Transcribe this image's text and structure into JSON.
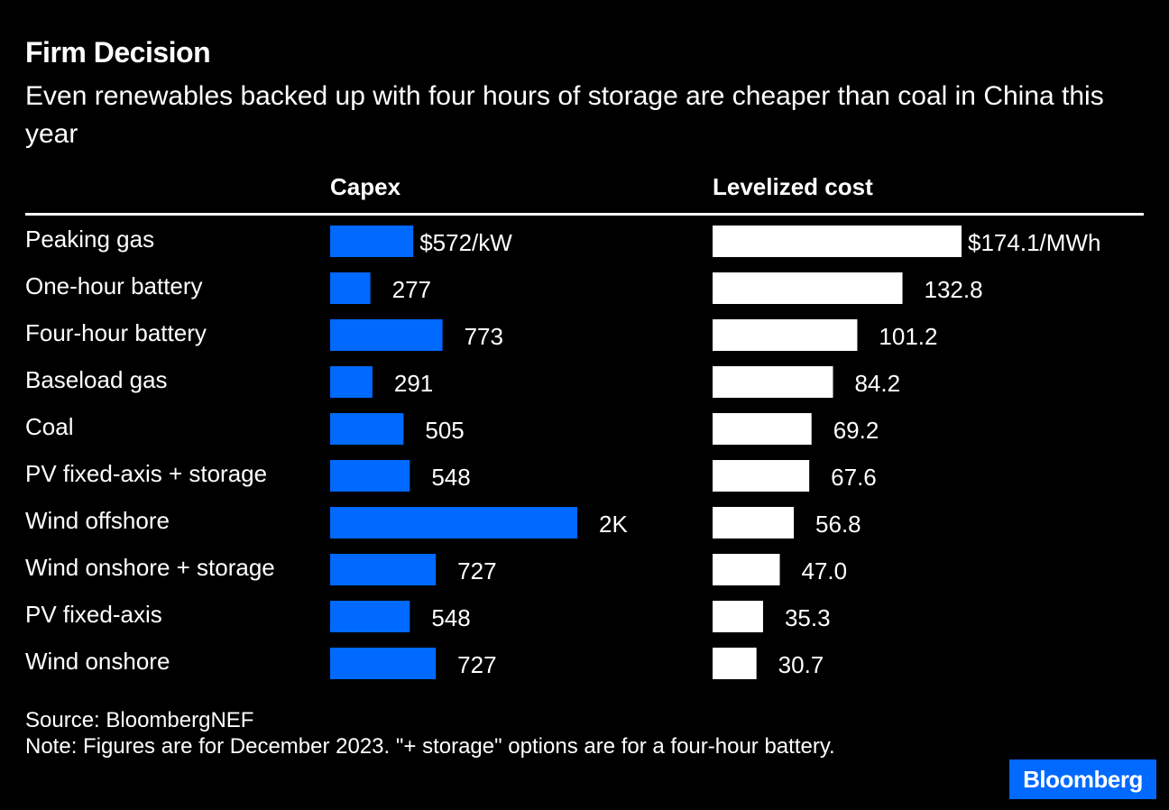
{
  "title": "Firm Decision",
  "subtitle": "Even renewables backed up with four hours of storage are cheaper than coal in China this year",
  "footer": {
    "source": "Source: BloombergNEF",
    "note": "Note: Figures are for December 2023. \"+ storage\" options are for a four-hour battery."
  },
  "logo": "Bloomberg",
  "colors": {
    "capex": "#0069FF",
    "lcoe": "#FFFFFF",
    "background": "#000000"
  },
  "chart_data": {
    "type": "bar",
    "orientation": "horizontal",
    "categories": [
      "Peaking gas",
      "One-hour battery",
      "Four-hour battery",
      "Baseload gas",
      "Coal",
      "PV fixed-axis + storage",
      "Wind offshore",
      "Wind onshore + storage",
      "PV fixed-axis",
      "Wind onshore"
    ],
    "series": [
      {
        "name": "Capex",
        "values": [
          572,
          277,
          773,
          291,
          505,
          548,
          1700,
          727,
          548,
          727
        ],
        "labels": [
          "$572/kW",
          "277",
          "773",
          "291",
          "505",
          "548",
          "2K",
          "727",
          "548",
          "727"
        ]
      },
      {
        "name": "Levelized cost",
        "values": [
          174.1,
          132.8,
          101.2,
          84.2,
          69.2,
          67.6,
          56.8,
          47.0,
          35.3,
          30.7
        ],
        "labels": [
          "$174.1/MWh",
          "132.8",
          "101.2",
          "84.2",
          "69.2",
          "67.6",
          "56.8",
          "47.0",
          "35.3",
          "30.7"
        ]
      }
    ]
  }
}
